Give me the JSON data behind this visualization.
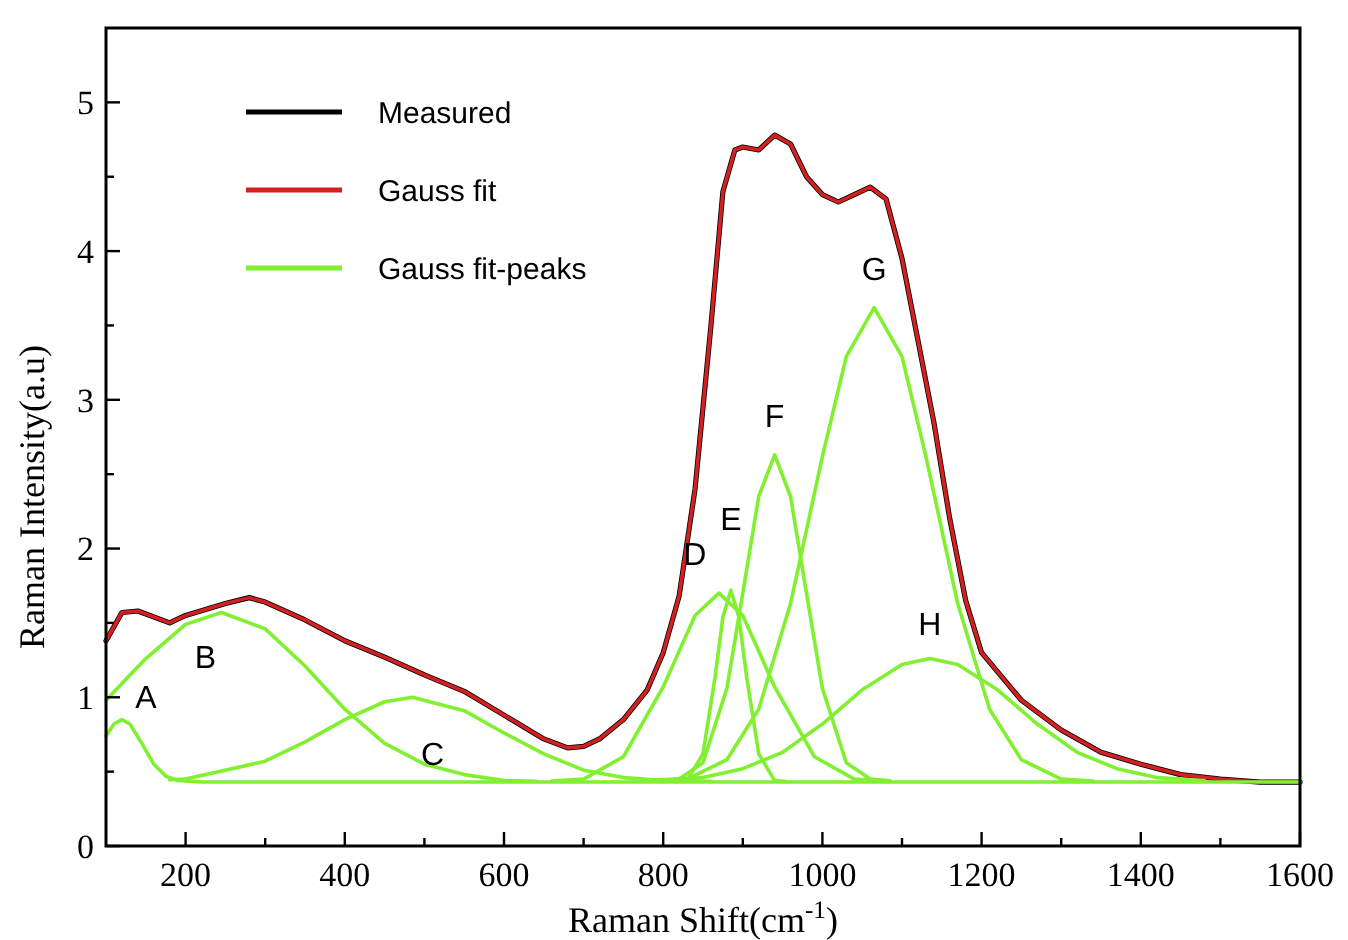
{
  "chart_data": {
    "type": "line",
    "xlabel": "Raman Shift(cm$^{-1}$)",
    "ylabel": "Raman Intensity(a.u)",
    "xlim": [
      100,
      1600
    ],
    "ylim": [
      0,
      5.5
    ],
    "xticks": [
      200,
      {
        "value": 300,
        "label": null
      },
      400,
      {
        "value": 500,
        "label": null
      },
      600,
      {
        "value": 700,
        "label": null
      },
      800,
      {
        "value": 900,
        "label": null
      },
      1000,
      {
        "value": 1100,
        "label": null
      },
      1200,
      {
        "value": 1300,
        "label": null
      },
      1400,
      {
        "value": 1500,
        "label": null
      },
      1600
    ],
    "yticks": [
      0,
      {
        "value": 0.5,
        "label": null
      },
      1,
      {
        "value": 1.5,
        "label": null
      },
      2,
      {
        "value": 2.5,
        "label": null
      },
      3,
      {
        "value": 3.5,
        "label": null
      },
      4,
      {
        "value": 4.5,
        "label": null
      },
      5
    ],
    "grid": false,
    "legend": "top left",
    "marker": "none",
    "line_style": "solid",
    "series": [
      {
        "name": "Measured",
        "color": "#000000",
        "x": [
          100,
          120,
          140,
          180,
          200,
          250,
          280,
          300,
          350,
          400,
          450,
          500,
          550,
          600,
          650,
          680,
          700,
          720,
          750,
          780,
          800,
          820,
          840,
          860,
          875,
          890,
          900,
          920,
          940,
          960,
          980,
          1000,
          1020,
          1040,
          1060,
          1080,
          1100,
          1120,
          1140,
          1160,
          1180,
          1200,
          1250,
          1300,
          1350,
          1400,
          1450,
          1500,
          1550,
          1600
        ],
        "values": [
          1.38,
          1.57,
          1.58,
          1.5,
          1.55,
          1.63,
          1.67,
          1.64,
          1.52,
          1.38,
          1.27,
          1.15,
          1.04,
          0.88,
          0.72,
          0.66,
          0.67,
          0.72,
          0.85,
          1.05,
          1.3,
          1.68,
          2.4,
          3.5,
          4.4,
          4.68,
          4.7,
          4.68,
          4.78,
          4.72,
          4.5,
          4.38,
          4.33,
          4.38,
          4.43,
          4.35,
          3.95,
          3.4,
          2.85,
          2.2,
          1.65,
          1.3,
          0.98,
          0.78,
          0.63,
          0.55,
          0.48,
          0.45,
          0.43,
          0.43
        ]
      },
      {
        "name": "Gauss fit",
        "color": "#d42020",
        "x": [
          100,
          120,
          140,
          180,
          200,
          250,
          280,
          300,
          350,
          400,
          450,
          500,
          550,
          600,
          650,
          680,
          700,
          720,
          750,
          780,
          800,
          820,
          840,
          860,
          875,
          890,
          900,
          920,
          940,
          960,
          980,
          1000,
          1020,
          1040,
          1060,
          1080,
          1100,
          1120,
          1140,
          1160,
          1180,
          1200,
          1250,
          1300,
          1350,
          1400,
          1450,
          1500,
          1550,
          1600
        ],
        "values": [
          1.38,
          1.57,
          1.58,
          1.5,
          1.55,
          1.63,
          1.67,
          1.64,
          1.52,
          1.38,
          1.27,
          1.15,
          1.04,
          0.88,
          0.72,
          0.66,
          0.67,
          0.72,
          0.85,
          1.05,
          1.3,
          1.68,
          2.4,
          3.5,
          4.4,
          4.68,
          4.7,
          4.68,
          4.78,
          4.72,
          4.5,
          4.38,
          4.33,
          4.38,
          4.43,
          4.35,
          3.95,
          3.4,
          2.85,
          2.2,
          1.65,
          1.3,
          0.98,
          0.78,
          0.63,
          0.55,
          0.48,
          0.45,
          0.43,
          0.43
        ]
      },
      {
        "name": "Gauss fit-peaks",
        "color": "#80f030",
        "x": [
          100,
          110,
          120,
          130,
          145,
          160,
          175,
          190,
          220,
          1600
        ],
        "values": [
          0.74,
          0.82,
          0.85,
          0.82,
          0.69,
          0.55,
          0.47,
          0.44,
          0.43,
          0.43
        ]
      },
      {
        "color": "#80f030",
        "x": [
          100,
          150,
          200,
          245,
          300,
          350,
          400,
          450,
          500,
          550,
          600,
          640
        ],
        "values": [
          0.98,
          1.26,
          1.49,
          1.57,
          1.46,
          1.21,
          0.92,
          0.69,
          0.55,
          0.48,
          0.44,
          0.435
        ]
      },
      {
        "color": "#80f030",
        "x": [
          180,
          200,
          300,
          350,
          400,
          450,
          485,
          550,
          600,
          650,
          700,
          750,
          800,
          860
        ],
        "values": [
          0.445,
          0.45,
          0.57,
          0.7,
          0.85,
          0.97,
          1.0,
          0.91,
          0.76,
          0.62,
          0.51,
          0.46,
          0.44,
          0.435
        ]
      },
      {
        "color": "#80f030",
        "x": [
          660,
          700,
          750,
          800,
          840,
          870,
          900,
          940,
          990,
          1040,
          1080
        ],
        "values": [
          0.437,
          0.45,
          0.6,
          1.07,
          1.55,
          1.7,
          1.55,
          1.07,
          0.6,
          0.45,
          0.436
        ]
      },
      {
        "color": "#80f030",
        "x": [
          815,
          830,
          850,
          865,
          875,
          885,
          895,
          905,
          920,
          940,
          955
        ],
        "values": [
          0.433,
          0.44,
          0.62,
          1.13,
          1.54,
          1.72,
          1.54,
          1.13,
          0.62,
          0.44,
          0.434
        ]
      },
      {
        "color": "#80f030",
        "x": [
          795,
          820,
          850,
          880,
          900,
          920,
          940,
          960,
          980,
          1000,
          1030,
          1060,
          1085
        ],
        "values": [
          0.436,
          0.45,
          0.56,
          1.06,
          1.7,
          2.35,
          2.63,
          2.35,
          1.7,
          1.06,
          0.56,
          0.45,
          0.438
        ]
      },
      {
        "color": "#80f030",
        "x": [
          790,
          830,
          880,
          920,
          960,
          1000,
          1030,
          1065,
          1100,
          1130,
          1170,
          1210,
          1250,
          1300,
          1340
        ],
        "values": [
          0.438,
          0.45,
          0.58,
          0.92,
          1.63,
          2.62,
          3.29,
          3.62,
          3.29,
          2.62,
          1.63,
          0.92,
          0.58,
          0.45,
          0.437
        ]
      },
      {
        "color": "#80f030",
        "x": [
          770,
          850,
          900,
          950,
          1000,
          1050,
          1100,
          1135,
          1170,
          1220,
          1270,
          1320,
          1370,
          1420,
          1480
        ],
        "values": [
          0.439,
          0.46,
          0.52,
          0.63,
          0.82,
          1.05,
          1.22,
          1.26,
          1.22,
          1.05,
          0.82,
          0.63,
          0.52,
          0.46,
          0.44
        ]
      }
    ],
    "annotations": [
      {
        "text": "A",
        "x": 120,
        "y": 0.85
      },
      {
        "text": "B",
        "x": 245,
        "y": 1.57
      },
      {
        "text": "C",
        "x": 485,
        "y": 1.0
      },
      {
        "text": "D",
        "x": 870,
        "y": 1.7
      },
      {
        "text": "E",
        "x": 885,
        "y": 1.72
      },
      {
        "text": "F",
        "x": 940,
        "y": 2.63
      },
      {
        "text": "G",
        "x": 1065,
        "y": 3.62
      },
      {
        "text": "H",
        "x": 1135,
        "y": 1.26
      }
    ]
  }
}
